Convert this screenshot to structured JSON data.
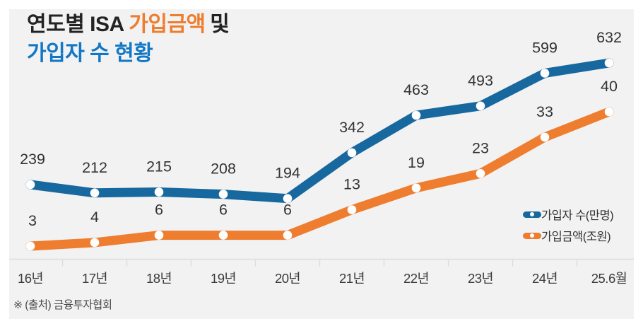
{
  "title": {
    "part1": "연도별 ISA",
    "highlight": "가입금액",
    "part3": "및",
    "line2": "가입자 수 현황"
  },
  "source": "※ (출처) 금융투자협회",
  "legend": [
    {
      "label": "가입자 수(만명)"
    },
    {
      "label": "가입금액(조원)"
    }
  ],
  "colors": {
    "panel_background": "#f2f2f2",
    "title_text": "#232323",
    "accent_orange": "#ee7d2f",
    "accent_blue": "#1277c5",
    "line_blue": "#17689e",
    "line_orange": "#ee7d2f",
    "data_label": "#333333",
    "axis_line": "#dcdcdc"
  },
  "chart_data": {
    "type": "line",
    "title": "연도별 ISA 가입금액 및 가입자 수 현황",
    "categories": [
      "16년",
      "17년",
      "18년",
      "19년",
      "20년",
      "21년",
      "22년",
      "23년",
      "24년",
      "25.6월"
    ],
    "series": [
      {
        "name": "가입자 수(만명)",
        "values": [
          239,
          212,
          215,
          208,
          194,
          342,
          463,
          493,
          599,
          632
        ],
        "color": "#17689e",
        "unit": "만명"
      },
      {
        "name": "가입금액(조원)",
        "values": [
          3,
          4,
          6,
          6,
          6,
          13,
          19,
          23,
          33,
          40
        ],
        "color": "#ee7d2f",
        "unit": "조원"
      }
    ],
    "legend_position": "right",
    "grid": false,
    "markers": "white-dot",
    "data_labels": true,
    "x_axis_ticks": "category-boundaries"
  }
}
